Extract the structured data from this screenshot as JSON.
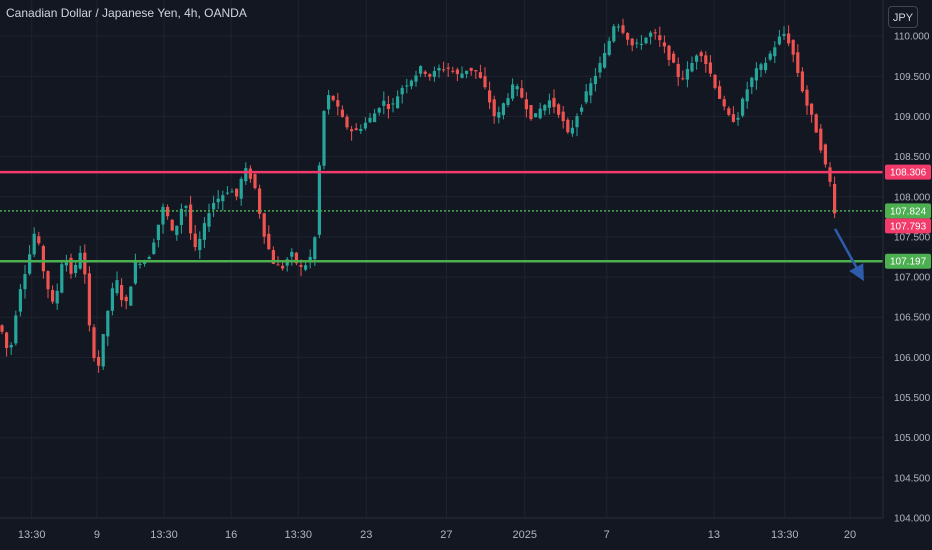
{
  "header": {
    "title": "Canadian Dollar / Japanese Yen, 4h, OANDA",
    "currency_button": "JPY"
  },
  "colors": {
    "background": "#131722",
    "grid": "#1f2330",
    "up": "#26a69a",
    "down": "#ef5350",
    "resistance": "#f23a6b",
    "support": "#4caf50",
    "arrow": "#2e5bab"
  },
  "chart_data": {
    "type": "candlestick",
    "title": "Canadian Dollar / Japanese Yen, 4h, OANDA",
    "yaxis": {
      "range": [
        104.0,
        110.45
      ],
      "ticks": [
        "104.000",
        "104.500",
        "105.000",
        "105.500",
        "106.000",
        "106.500",
        "107.000",
        "107.500",
        "108.000",
        "108.500",
        "109.000",
        "109.500",
        "110.000"
      ]
    },
    "xaxis": {
      "ticks": [
        {
          "label": "13:30",
          "pos": 0.034
        },
        {
          "label": "9",
          "pos": 0.104
        },
        {
          "label": "13:30",
          "pos": 0.176
        },
        {
          "label": "16",
          "pos": 0.248
        },
        {
          "label": "13:30",
          "pos": 0.32
        },
        {
          "label": "23",
          "pos": 0.393
        },
        {
          "label": "27",
          "pos": 0.479
        },
        {
          "label": "2025",
          "pos": 0.563
        },
        {
          "label": "7",
          "pos": 0.651
        },
        {
          "label": "13",
          "pos": 0.766
        },
        {
          "label": "13:30",
          "pos": 0.842
        },
        {
          "label": "20",
          "pos": 0.912
        }
      ]
    },
    "levels": [
      {
        "name": "resistance",
        "value": 108.306,
        "label": "108.306",
        "color": "#f23a6b"
      },
      {
        "name": "support-near",
        "value": 107.824,
        "label": "107.824",
        "color": "#4caf50",
        "dashed": true
      },
      {
        "name": "support",
        "value": 107.197,
        "label": "107.197",
        "color": "#4caf50"
      }
    ],
    "last_price": {
      "value": 107.793,
      "label": "107.793",
      "color": "#f23a6b"
    },
    "projection": {
      "from": [
        0.896,
        107.6
      ],
      "to": [
        0.927,
        106.95
      ]
    },
    "keypoints": [
      [
        0.0,
        106.4
      ],
      [
        0.01,
        106.0
      ],
      [
        0.02,
        106.8
      ],
      [
        0.03,
        107.2
      ],
      [
        0.038,
        107.6
      ],
      [
        0.048,
        107.0
      ],
      [
        0.058,
        106.6
      ],
      [
        0.068,
        107.3
      ],
      [
        0.078,
        107.0
      ],
      [
        0.088,
        107.4
      ],
      [
        0.098,
        106.1
      ],
      [
        0.106,
        105.9
      ],
      [
        0.114,
        106.5
      ],
      [
        0.124,
        107.0
      ],
      [
        0.134,
        106.6
      ],
      [
        0.146,
        107.2
      ],
      [
        0.158,
        107.2
      ],
      [
        0.166,
        107.5
      ],
      [
        0.176,
        107.9
      ],
      [
        0.186,
        107.5
      ],
      [
        0.198,
        108.0
      ],
      [
        0.208,
        107.3
      ],
      [
        0.216,
        107.5
      ],
      [
        0.226,
        107.9
      ],
      [
        0.236,
        108.0
      ],
      [
        0.246,
        108.1
      ],
      [
        0.254,
        108.0
      ],
      [
        0.262,
        108.35
      ],
      [
        0.272,
        108.2
      ],
      [
        0.282,
        107.6
      ],
      [
        0.292,
        107.2
      ],
      [
        0.302,
        107.1
      ],
      [
        0.312,
        107.3
      ],
      [
        0.322,
        107.1
      ],
      [
        0.332,
        107.2
      ],
      [
        0.338,
        107.5
      ],
      [
        0.346,
        109.0
      ],
      [
        0.354,
        109.3
      ],
      [
        0.362,
        109.1
      ],
      [
        0.37,
        108.9
      ],
      [
        0.38,
        108.8
      ],
      [
        0.39,
        108.9
      ],
      [
        0.4,
        109.0
      ],
      [
        0.41,
        109.2
      ],
      [
        0.42,
        109.1
      ],
      [
        0.43,
        109.35
      ],
      [
        0.44,
        109.45
      ],
      [
        0.452,
        109.6
      ],
      [
        0.462,
        109.5
      ],
      [
        0.472,
        109.6
      ],
      [
        0.482,
        109.6
      ],
      [
        0.492,
        109.5
      ],
      [
        0.502,
        109.6
      ],
      [
        0.512,
        109.55
      ],
      [
        0.522,
        109.3
      ],
      [
        0.532,
        108.95
      ],
      [
        0.542,
        109.2
      ],
      [
        0.552,
        109.4
      ],
      [
        0.562,
        109.2
      ],
      [
        0.572,
        108.95
      ],
      [
        0.58,
        109.1
      ],
      [
        0.59,
        109.2
      ],
      [
        0.6,
        109.05
      ],
      [
        0.61,
        108.75
      ],
      [
        0.62,
        109.05
      ],
      [
        0.63,
        109.3
      ],
      [
        0.64,
        109.55
      ],
      [
        0.65,
        109.8
      ],
      [
        0.66,
        110.2
      ],
      [
        0.67,
        110.05
      ],
      [
        0.68,
        109.85
      ],
      [
        0.69,
        109.95
      ],
      [
        0.7,
        110.05
      ],
      [
        0.71,
        109.9
      ],
      [
        0.72,
        109.7
      ],
      [
        0.73,
        109.45
      ],
      [
        0.74,
        109.6
      ],
      [
        0.75,
        109.85
      ],
      [
        0.76,
        109.6
      ],
      [
        0.77,
        109.3
      ],
      [
        0.78,
        109.0
      ],
      [
        0.79,
        108.95
      ],
      [
        0.8,
        109.3
      ],
      [
        0.81,
        109.55
      ],
      [
        0.82,
        109.65
      ],
      [
        0.83,
        109.85
      ],
      [
        0.84,
        110.05
      ],
      [
        0.848,
        109.9
      ],
      [
        0.856,
        109.55
      ],
      [
        0.864,
        109.2
      ],
      [
        0.872,
        108.95
      ],
      [
        0.878,
        108.75
      ],
      [
        0.884,
        108.45
      ],
      [
        0.89,
        108.2
      ],
      [
        0.896,
        107.95
      ],
      [
        0.9,
        107.79
      ]
    ]
  }
}
